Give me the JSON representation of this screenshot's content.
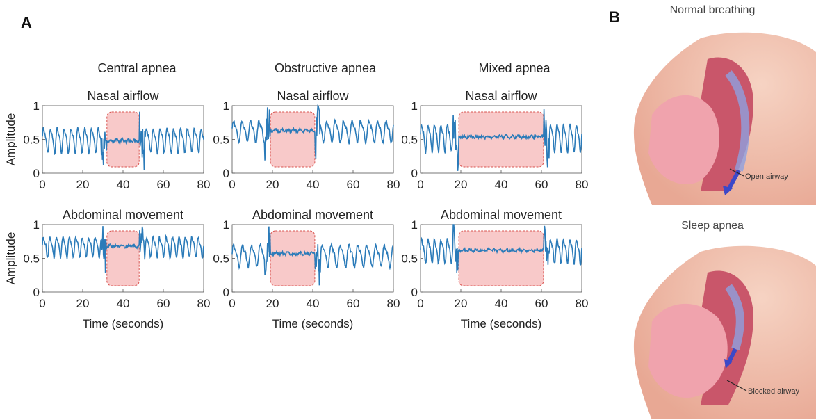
{
  "panel_a_label": "A",
  "panel_b_label": "B",
  "columns": [
    "Central apnea",
    "Obstructive apnea",
    "Mixed apnea"
  ],
  "illustration": {
    "normal_title": "Normal breathing",
    "apnea_title": "Sleep apnea",
    "open_airway_label": "Open airway",
    "blocked_airway_label": "Blocked airway"
  },
  "colors": {
    "signal": "#2b7bb9",
    "apnea_fill": "#f8c9c9",
    "apnea_border": "#d9534f"
  },
  "chart_data": [
    {
      "type": "line",
      "column": "Central apnea",
      "title": "Nasal airflow",
      "ylabel": "Amplitude",
      "xlabel": "",
      "xlim": [
        0,
        80
      ],
      "ylim": [
        0,
        1
      ],
      "xticks": [
        "0",
        "20",
        "40",
        "60",
        "80"
      ],
      "yticks": [
        "0",
        "0.5",
        "1"
      ],
      "pattern": "osc",
      "apnea_region": [
        32,
        48
      ],
      "apnea_level": 0.48,
      "baseline": 0.5,
      "amplitude": 0.16,
      "period": 3.4
    },
    {
      "type": "line",
      "column": "Obstructive apnea",
      "title": "Nasal airflow",
      "ylabel": "",
      "xlabel": "",
      "xlim": [
        0,
        80
      ],
      "ylim": [
        0,
        1
      ],
      "xticks": [
        "0",
        "20",
        "40",
        "60",
        "80"
      ],
      "yticks": [
        "0",
        "0.5",
        "1"
      ],
      "pattern": "osc",
      "apnea_region": [
        19,
        41
      ],
      "apnea_level": 0.63,
      "baseline": 0.63,
      "amplitude": 0.14,
      "period": 4.2
    },
    {
      "type": "line",
      "column": "Mixed apnea",
      "title": "Nasal airflow",
      "ylabel": "",
      "xlabel": "",
      "xlim": [
        0,
        80
      ],
      "ylim": [
        0,
        1
      ],
      "xticks": [
        "0",
        "20",
        "40",
        "60",
        "80"
      ],
      "yticks": [
        "0",
        "0.5",
        "1"
      ],
      "pattern": "osc",
      "apnea_region": [
        19,
        61
      ],
      "apnea_level": 0.54,
      "baseline": 0.54,
      "amplitude": 0.18,
      "period": 3.2
    },
    {
      "type": "line",
      "column": "Central apnea",
      "title": "Abdominal movement",
      "ylabel": "Amplitude",
      "xlabel": "Time (seconds)",
      "xlim": [
        0,
        80
      ],
      "ylim": [
        0,
        1
      ],
      "xticks": [
        "0",
        "20",
        "40",
        "60",
        "80"
      ],
      "yticks": [
        "0",
        "0.5",
        "1"
      ],
      "pattern": "osc",
      "apnea_region": [
        32,
        48
      ],
      "apnea_level": 0.68,
      "baseline": 0.68,
      "amplitude": 0.13,
      "period": 3.2
    },
    {
      "type": "line",
      "column": "Obstructive apnea",
      "title": "Abdominal movement",
      "ylabel": "",
      "xlabel": "Time (seconds)",
      "xlim": [
        0,
        80
      ],
      "ylim": [
        0,
        1
      ],
      "xticks": [
        "0",
        "20",
        "40",
        "60",
        "80"
      ],
      "yticks": [
        "0",
        "0.5",
        "1"
      ],
      "pattern": "osc",
      "apnea_region": [
        19,
        41
      ],
      "apnea_level": 0.57,
      "baseline": 0.55,
      "amplitude": 0.14,
      "period": 4.4
    },
    {
      "type": "line",
      "column": "Mixed apnea",
      "title": "Abdominal movement",
      "ylabel": "",
      "xlabel": "Time (seconds)",
      "xlim": [
        0,
        80
      ],
      "ylim": [
        0,
        1
      ],
      "xticks": [
        "0",
        "20",
        "40",
        "60",
        "80"
      ],
      "yticks": [
        "0",
        "0.5",
        "1"
      ],
      "pattern": "osc",
      "apnea_region": [
        19,
        61
      ],
      "apnea_level": 0.62,
      "baseline": 0.62,
      "amplitude": 0.16,
      "period": 3.2
    }
  ]
}
